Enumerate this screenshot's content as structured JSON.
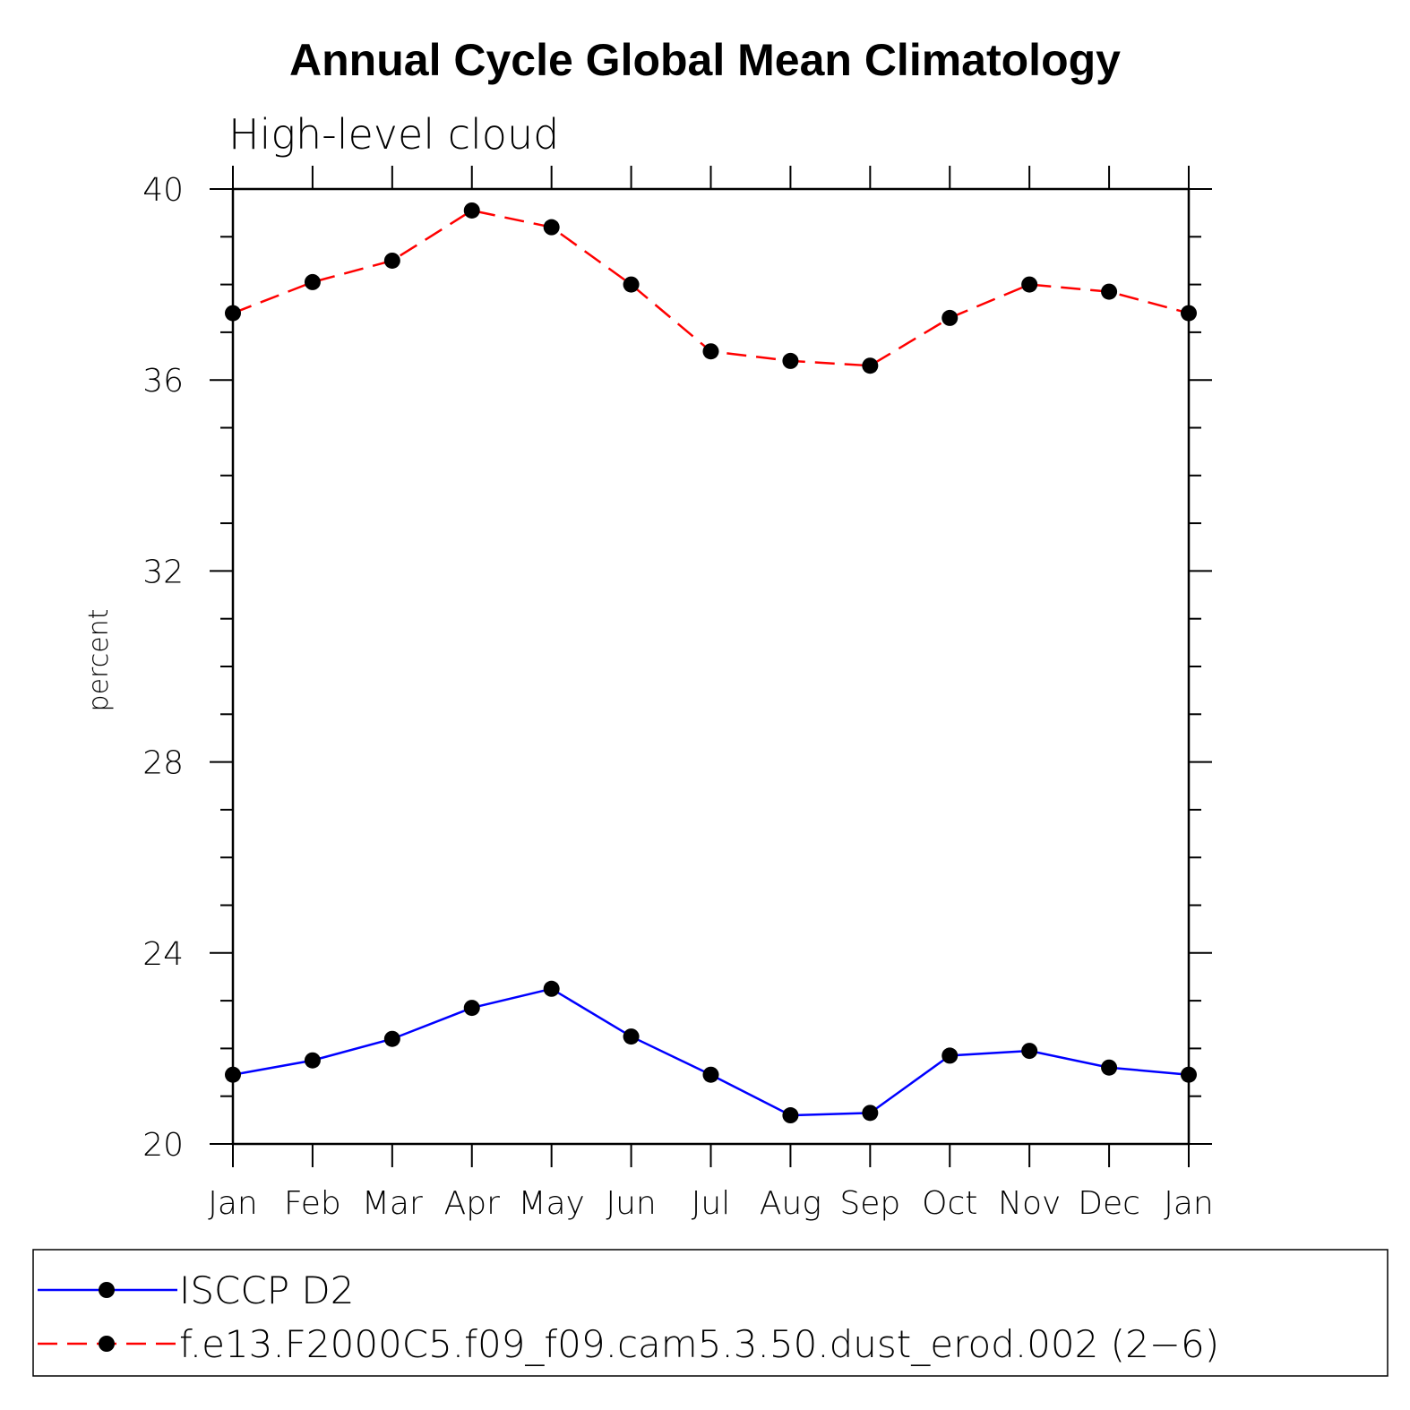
{
  "chart_data": {
    "type": "line",
    "title": "Annual Cycle Global Mean Climatology",
    "subtitle": "High-level cloud",
    "xlabel": "",
    "ylabel": "percent",
    "categories": [
      "Jan",
      "Feb",
      "Mar",
      "Apr",
      "May",
      "Jun",
      "Jul",
      "Aug",
      "Sep",
      "Oct",
      "Nov",
      "Dec",
      "Jan"
    ],
    "ylim": [
      20,
      40
    ],
    "yticks": [
      20,
      24,
      28,
      32,
      36,
      40
    ],
    "grid": false,
    "legend_position": "bottom",
    "series": [
      {
        "name": "ISCCP D2",
        "color": "#0000ff",
        "line_style": "solid",
        "marker": "filled-circle",
        "values": [
          21.45,
          21.75,
          22.2,
          22.85,
          23.25,
          22.25,
          21.45,
          20.6,
          20.65,
          21.85,
          21.95,
          21.6,
          21.45
        ]
      },
      {
        "name": "f.e13.F2000C5.f09_f09.cam5.3.50.dust_erod.002 (2−6)",
        "color": "#ff0000",
        "line_style": "dashed",
        "marker": "filled-circle",
        "values": [
          37.4,
          38.05,
          38.5,
          39.55,
          39.2,
          38.0,
          36.6,
          36.4,
          36.3,
          37.3,
          38.0,
          37.85,
          37.4
        ]
      }
    ]
  }
}
